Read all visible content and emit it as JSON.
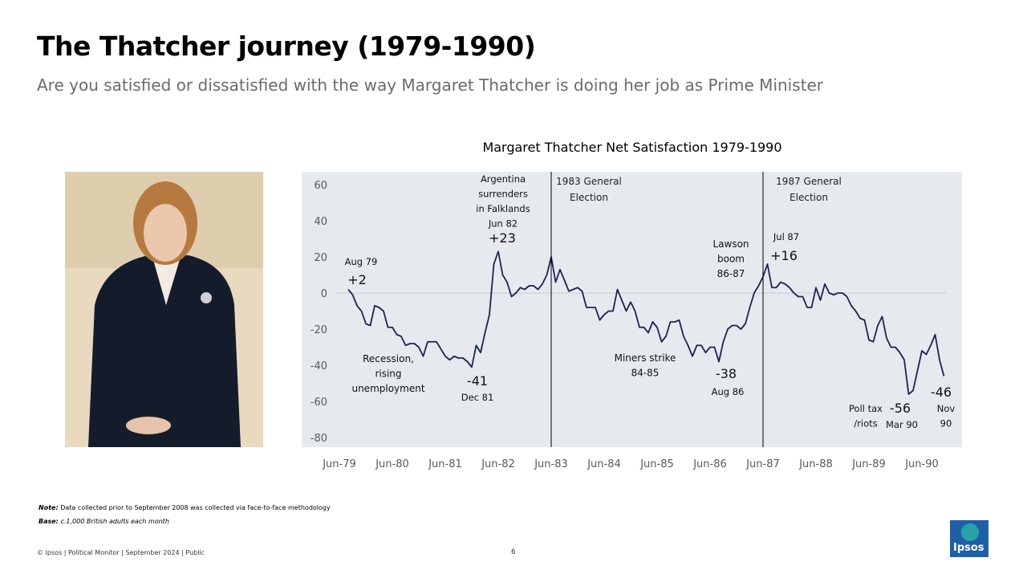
{
  "title": "The Thatcher journey (1979-1990)",
  "subtitle": "Are you satisfied or dissatisfied with the way Margaret Thatcher is doing her job as Prime Minister",
  "chart_data": {
    "type": "line",
    "title": "Margaret Thatcher Net Satisfaction 1979-1990",
    "categories": [
      "Jun-79",
      null,
      null,
      null,
      null,
      null,
      null,
      null,
      null,
      null,
      null,
      null,
      "Jun-80",
      null,
      null,
      null,
      null,
      null,
      null,
      null,
      null,
      null,
      null,
      null,
      "Jun-81",
      null,
      null,
      null,
      null,
      null,
      null,
      null,
      null,
      null,
      null,
      null,
      "Jun-82",
      null,
      null,
      null,
      null,
      null,
      null,
      null,
      null,
      null,
      null,
      null,
      "Jun-83",
      null,
      null,
      null,
      null,
      null,
      null,
      null,
      null,
      null,
      null,
      null,
      "Jun-84",
      null,
      null,
      null,
      null,
      null,
      null,
      null,
      null,
      null,
      null,
      null,
      "Jun-85",
      null,
      null,
      null,
      null,
      null,
      null,
      null,
      null,
      null,
      null,
      null,
      "Jun-86",
      null,
      null,
      null,
      null,
      null,
      null,
      null,
      null,
      null,
      null,
      null,
      "Jun-87",
      null,
      null,
      null,
      null,
      null,
      null,
      null,
      null,
      null,
      null,
      null,
      "Jun-88",
      null,
      null,
      null,
      null,
      null,
      null,
      null,
      null,
      null,
      null,
      null,
      "Jun-89",
      null,
      null,
      null,
      null,
      null,
      null,
      null,
      null,
      null,
      null,
      null,
      "Jun-90",
      null,
      null,
      null,
      null,
      null
    ],
    "values": [
      null,
      null,
      2,
      -1,
      -7,
      -10,
      -17,
      -18,
      -7,
      -8,
      -10,
      -19,
      -19,
      -23,
      -24,
      -29,
      -28,
      -28,
      -30,
      -35,
      -27,
      -27,
      -27,
      -31,
      -35,
      -37,
      -35,
      -36,
      -36,
      -38,
      -41,
      -29,
      -33,
      -22,
      -12,
      16,
      23,
      10,
      6,
      -2,
      0,
      3,
      2,
      4,
      4,
      2,
      5,
      10,
      20,
      6,
      13,
      7,
      1,
      2,
      3,
      1,
      -8,
      -8,
      -8,
      -15,
      -12,
      -10,
      -10,
      2,
      -4,
      -10,
      -5,
      -10,
      -19,
      -19,
      -22,
      -16,
      -19,
      -27,
      -24,
      -16,
      -16,
      -15,
      -24,
      -29,
      -35,
      -29,
      -29,
      -33,
      -30,
      -30,
      -38,
      -27,
      -20,
      -18,
      -18,
      -20,
      -17,
      -8,
      0,
      4,
      9,
      16,
      3,
      3,
      6,
      5,
      3,
      0,
      -2,
      -2,
      -8,
      -8,
      3,
      -4,
      5,
      0,
      -1,
      0,
      0,
      -2,
      -7,
      -10,
      -14,
      -15,
      -26,
      -27,
      -18,
      -13,
      -25,
      -30,
      -30,
      -33,
      -37,
      -56,
      -54,
      -43,
      -32,
      -34,
      -29,
      -23,
      -37,
      -46
    ],
    "color": "#1b2550",
    "ylim": [
      -80,
      60
    ],
    "yticks": [
      -80,
      -60,
      -40,
      -20,
      0,
      20,
      40,
      60
    ],
    "events": [
      {
        "at": "Jun-83",
        "lines": [
          "1983 General",
          "Election"
        ]
      },
      {
        "at": "Jun-87",
        "lines": [
          "1987 General",
          "Election"
        ]
      }
    ],
    "annotations": [
      [
        "Aug 79"
      ],
      [
        "+2"
      ],
      [
        "Recession,",
        "rising",
        "unemployment"
      ],
      [
        "-41"
      ],
      [
        "Dec 81"
      ],
      [
        "Argentina",
        "surrenders",
        "in Falklands",
        "Jun 82"
      ],
      [
        "+23"
      ],
      [
        "Miners strike",
        "84-85"
      ],
      [
        "Lawson",
        "boom",
        "86-87"
      ],
      [
        "-38"
      ],
      [
        "Aug 86"
      ],
      [
        "Jul 87"
      ],
      [
        "+16"
      ],
      [
        "Poll tax",
        "/riots"
      ],
      [
        "-56"
      ],
      [
        "Mar 90"
      ],
      [
        "-46"
      ],
      [
        "Nov",
        "90"
      ]
    ]
  },
  "notes": {
    "note_label": "Note:",
    "note": "Data collected prior to September 2008 was collected via face-to-face methodology",
    "base_label": "Base:",
    "base": "c.1,000 British adults each month"
  },
  "footer": "© Ipsos | Political Monitor | September 2024 | Public",
  "page_number": "6",
  "logo": "Ipsos"
}
